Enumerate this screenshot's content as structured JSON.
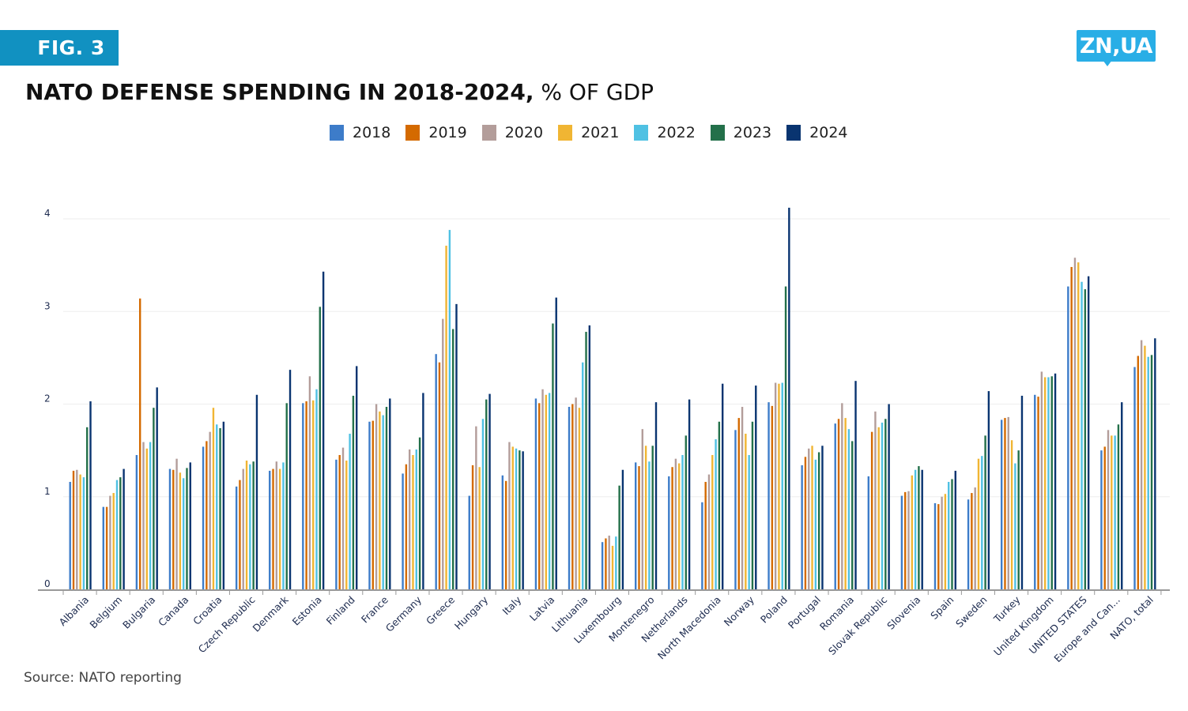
{
  "badge": {
    "label": "FIG. 3"
  },
  "logo": {
    "label": "ZN,UA"
  },
  "header": {
    "title_bold": "NATO DEFENSE SPENDING IN 2018-2024,",
    "title_light": " % OF GDP"
  },
  "source": "Source: NATO reporting",
  "colors": {
    "badge": "#1191c1",
    "logo": "#29aee6",
    "axis": "#999999",
    "grid": "#eeeeee",
    "label": "#1d2b4f"
  },
  "chart_data": {
    "type": "bar",
    "title": "NATO DEFENSE SPENDING IN 2018-2024, % OF GDP",
    "xlabel": "",
    "ylabel": "% of GDP",
    "ylim": [
      0,
      4.2
    ],
    "yticks": [
      0,
      1,
      2,
      3,
      4
    ],
    "grid": true,
    "legend_position": "top-center",
    "categories": [
      "Albania",
      "Belgium",
      "Bulgaria",
      "Canada",
      "Croatia",
      "Czech Republic",
      "Denmark",
      "Estonia",
      "Finland",
      "France",
      "Germany",
      "Greece",
      "Hungary",
      "Italy",
      "Latvia",
      "Lithuania",
      "Luxembourg",
      "Montenegro",
      "Netherlands",
      "North Macedonia",
      "Norway",
      "Poland",
      "Portugal",
      "Romania",
      "Slovak Republic",
      "Slovenia",
      "Spain",
      "Sweden",
      "Turkey",
      "United Kingdom",
      "UNITED STATES",
      "Europe and Can...",
      "NATO, total"
    ],
    "series": [
      {
        "name": "2018",
        "color": "#3d7cc9",
        "values": [
          1.16,
          0.89,
          1.45,
          1.3,
          1.54,
          1.11,
          1.28,
          2.01,
          1.4,
          1.81,
          1.25,
          2.54,
          1.01,
          1.23,
          2.06,
          1.97,
          0.51,
          1.37,
          1.22,
          0.94,
          1.72,
          2.02,
          1.34,
          1.79,
          1.22,
          1.01,
          0.93,
          0.97,
          1.83,
          2.1,
          3.27,
          1.5,
          2.4
        ]
      },
      {
        "name": "2019",
        "color": "#d46a00",
        "values": [
          1.28,
          0.89,
          3.14,
          1.29,
          1.6,
          1.18,
          1.3,
          2.03,
          1.45,
          1.82,
          1.35,
          2.45,
          1.34,
          1.17,
          2.01,
          2.0,
          0.55,
          1.33,
          1.32,
          1.16,
          1.85,
          1.98,
          1.43,
          1.84,
          1.7,
          1.05,
          0.92,
          1.04,
          1.85,
          2.08,
          3.48,
          1.54,
          2.52
        ]
      },
      {
        "name": "2020",
        "color": "#b39d9a",
        "values": [
          1.29,
          1.01,
          1.59,
          1.41,
          1.7,
          1.3,
          1.38,
          2.3,
          1.53,
          2.0,
          1.51,
          2.92,
          1.76,
          1.59,
          2.16,
          2.07,
          0.58,
          1.73,
          1.41,
          1.24,
          1.97,
          2.23,
          1.52,
          2.01,
          1.92,
          1.06,
          1.0,
          1.1,
          1.86,
          2.35,
          3.58,
          1.72,
          2.69
        ]
      },
      {
        "name": "2021",
        "color": "#f0b533",
        "values": [
          1.24,
          1.04,
          1.52,
          1.26,
          1.96,
          1.39,
          1.3,
          2.04,
          1.39,
          1.92,
          1.45,
          3.71,
          1.32,
          1.54,
          2.1,
          1.96,
          0.47,
          1.55,
          1.36,
          1.45,
          1.68,
          2.22,
          1.55,
          1.85,
          1.75,
          1.23,
          1.03,
          1.41,
          1.61,
          2.29,
          3.53,
          1.66,
          2.63
        ]
      },
      {
        "name": "2022",
        "color": "#4fc1e3",
        "values": [
          1.21,
          1.18,
          1.59,
          1.2,
          1.78,
          1.35,
          1.37,
          2.16,
          1.68,
          1.88,
          1.51,
          3.88,
          1.84,
          1.52,
          2.12,
          2.45,
          0.57,
          1.38,
          1.45,
          1.62,
          1.45,
          2.23,
          1.4,
          1.73,
          1.8,
          1.29,
          1.16,
          1.44,
          1.36,
          2.29,
          3.32,
          1.66,
          2.51
        ]
      },
      {
        "name": "2023",
        "color": "#23704a",
        "values": [
          1.75,
          1.21,
          1.96,
          1.31,
          1.74,
          1.38,
          2.01,
          3.05,
          2.09,
          1.97,
          1.64,
          2.81,
          2.05,
          1.5,
          2.87,
          2.78,
          1.12,
          1.55,
          1.66,
          1.81,
          1.81,
          3.27,
          1.48,
          1.6,
          1.84,
          1.33,
          1.19,
          1.66,
          1.5,
          2.3,
          3.24,
          1.78,
          2.53
        ]
      },
      {
        "name": "2024",
        "color": "#093470",
        "values": [
          2.03,
          1.3,
          2.18,
          1.37,
          1.81,
          2.1,
          2.37,
          3.43,
          2.41,
          2.06,
          2.12,
          3.08,
          2.11,
          1.49,
          3.15,
          2.85,
          1.29,
          2.02,
          2.05,
          2.22,
          2.2,
          4.12,
          1.55,
          2.25,
          2.0,
          1.29,
          1.28,
          2.14,
          2.09,
          2.33,
          3.38,
          2.02,
          2.71
        ]
      }
    ]
  }
}
